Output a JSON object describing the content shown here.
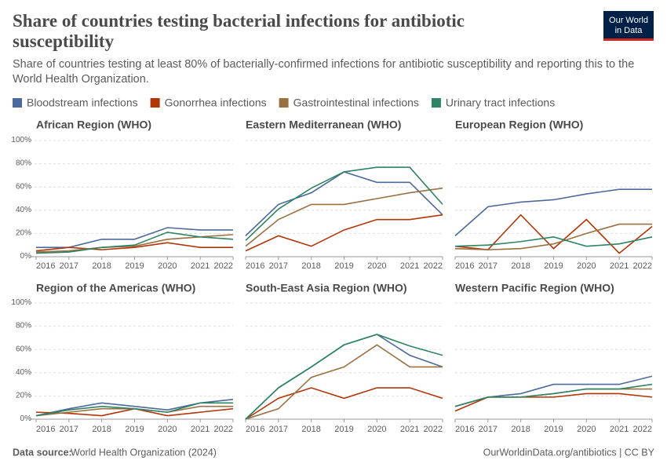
{
  "header": {
    "title": "Share of countries testing bacterial infections for antibiotic susceptibility",
    "subtitle": "Share of countries testing at least 80% of bacterially-confirmed infections for antibiotic susceptibility and reporting this to the World Health Organization.",
    "logo": [
      "Our World",
      "in Data"
    ]
  },
  "footer": {
    "source_label": "Data source:",
    "source": "World Health Organization (2024)",
    "credit": "OurWorldinData.org/antibiotics | CC BY"
  },
  "chart_data": [
    {
      "type": "line",
      "title": "African Region (WHO)",
      "x": [
        2016,
        2017,
        2018,
        2019,
        2020,
        2021,
        2022
      ],
      "xlim": [
        2016,
        2022
      ],
      "ylim": [
        0,
        100
      ],
      "yticks": [
        {
          "value": 0,
          "label": "0%"
        },
        {
          "value": 20,
          "label": "20%"
        },
        {
          "value": 40,
          "label": "40%"
        },
        {
          "value": 60,
          "label": "60%"
        },
        {
          "value": 80,
          "label": "80%"
        },
        {
          "value": 100,
          "label": "100%"
        }
      ],
      "series": [
        {
          "name": "Bloodstream infections",
          "color": "#4c6a9c",
          "values": [
            8,
            8,
            15,
            15,
            25,
            23,
            23
          ]
        },
        {
          "name": "Gonorrhea infections",
          "color": "#b13507",
          "values": [
            5,
            8,
            6,
            8,
            12,
            8,
            8
          ]
        },
        {
          "name": "Gastrointestinal infections",
          "color": "#9a7040",
          "values": [
            4,
            5,
            8,
            9,
            15,
            17,
            19
          ]
        },
        {
          "name": "Urinary tract infections",
          "color": "#2e8465",
          "values": [
            3,
            4,
            8,
            10,
            21,
            17,
            15
          ]
        }
      ]
    },
    {
      "type": "line",
      "title": "Eastern Mediterranean (WHO)",
      "x": [
        2016,
        2017,
        2018,
        2019,
        2020,
        2021,
        2022
      ],
      "xlim": [
        2016,
        2022
      ],
      "ylim": [
        0,
        100
      ],
      "series": [
        {
          "values": [
            18,
            45,
            55,
            73,
            64,
            64,
            36
          ]
        },
        {
          "values": [
            5,
            18,
            9,
            23,
            32,
            32,
            36
          ]
        },
        {
          "values": [
            9,
            32,
            45,
            45,
            50,
            55,
            59
          ]
        },
        {
          "values": [
            14,
            41,
            59,
            73,
            77,
            77,
            45
          ]
        }
      ]
    },
    {
      "type": "line",
      "title": "European Region (WHO)",
      "x": [
        2016,
        2017,
        2018,
        2019,
        2020,
        2021,
        2022
      ],
      "xlim": [
        2016,
        2022
      ],
      "ylim": [
        0,
        100
      ],
      "series": [
        {
          "values": [
            18,
            43,
            47,
            49,
            54,
            58,
            58
          ]
        },
        {
          "values": [
            9,
            6,
            36,
            7,
            32,
            3,
            26
          ]
        },
        {
          "values": [
            7,
            6,
            7,
            11,
            20,
            28,
            28
          ]
        },
        {
          "values": [
            9,
            10,
            13,
            17,
            9,
            11,
            17
          ]
        }
      ]
    },
    {
      "type": "line",
      "title": "Region of the Americas (WHO)",
      "x": [
        2016,
        2017,
        2018,
        2019,
        2020,
        2021,
        2022
      ],
      "xlim": [
        2016,
        2022
      ],
      "ylim": [
        0,
        100
      ],
      "yticks": [
        {
          "value": 0,
          "label": "0%"
        },
        {
          "value": 20,
          "label": "20%"
        },
        {
          "value": 40,
          "label": "40%"
        },
        {
          "value": 60,
          "label": "60%"
        },
        {
          "value": 80,
          "label": "80%"
        },
        {
          "value": 100,
          "label": "100%"
        }
      ],
      "series": [
        {
          "values": [
            3,
            9,
            14,
            11,
            8,
            14,
            17
          ]
        },
        {
          "values": [
            6,
            5,
            3,
            9,
            3,
            6,
            9
          ]
        },
        {
          "values": [
            3,
            6,
            9,
            9,
            6,
            11,
            11
          ]
        },
        {
          "values": [
            3,
            8,
            11,
            9,
            6,
            14,
            14
          ]
        }
      ]
    },
    {
      "type": "line",
      "title": "South-East Asia Region (WHO)",
      "x": [
        2016,
        2017,
        2018,
        2019,
        2020,
        2021,
        2022
      ],
      "xlim": [
        2016,
        2022
      ],
      "ylim": [
        0,
        100
      ],
      "series": [
        {
          "values": [
            0,
            27,
            45,
            64,
            73,
            55,
            45
          ]
        },
        {
          "values": [
            0,
            18,
            27,
            18,
            27,
            27,
            18
          ]
        },
        {
          "values": [
            0,
            9,
            36,
            45,
            64,
            45,
            45
          ]
        },
        {
          "values": [
            0,
            27,
            45,
            64,
            73,
            63,
            55
          ]
        }
      ]
    },
    {
      "type": "line",
      "title": "Western Pacific Region (WHO)",
      "x": [
        2016,
        2017,
        2018,
        2019,
        2020,
        2021,
        2022
      ],
      "xlim": [
        2016,
        2022
      ],
      "ylim": [
        0,
        100
      ],
      "series": [
        {
          "values": [
            11,
            19,
            22,
            30,
            30,
            30,
            37
          ]
        },
        {
          "values": [
            7,
            19,
            19,
            19,
            22,
            22,
            19
          ]
        },
        {
          "values": [
            11,
            19,
            19,
            22,
            26,
            26,
            26
          ]
        },
        {
          "values": [
            11,
            19,
            19,
            22,
            26,
            26,
            30
          ]
        }
      ]
    }
  ]
}
